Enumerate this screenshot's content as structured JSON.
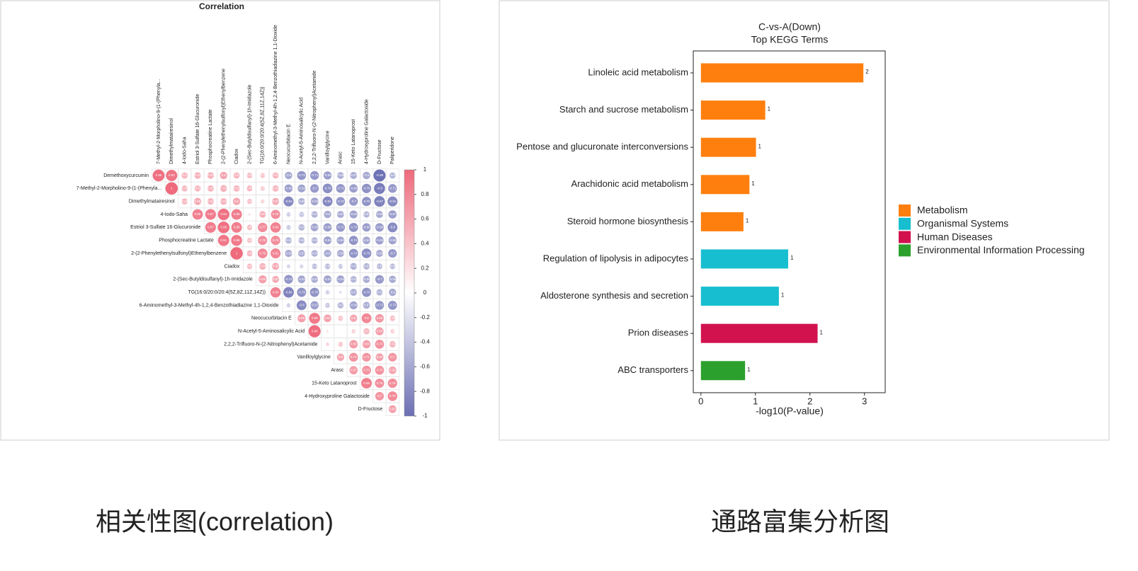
{
  "chart_data": [
    {
      "type": "correlation",
      "title": "Correlation",
      "variables": [
        "7-Methyl-2-Morpholino-9-(1-(Phenyla...",
        "Dimethylmatairesinol",
        "4-Iodo-Saha",
        "Estriol 3-Sulfate 16-Glucuronide",
        "Phosphocreatine Lactate",
        "2-(2-Phenylethenylsulfonyl)Ethenylbenzene",
        "Ciadox",
        "2-(Sec-Butyldisulfanyl)-1h-Imidazole",
        "TG(16:0/20:0/20:4(5Z,8Z,11Z,14Z))",
        "6-Aminomethyl-3-Methyl-4h-1,2,4-Benzothiadiazine 1,1-Dioxide",
        "Neocucurbitacin E",
        "N-Acetyl-5-Aminosalicylic Acid",
        "2,2,2-Trifluoro-N-(2-Nitrophenyl)Acetamide",
        "Vanilloylglycine",
        "Arasc",
        "15-Keto Latanoprost",
        "4-Hydroxyproline Galactoside",
        "D-Fructose",
        "Paliperidone"
      ],
      "row_labels": [
        "Demethoxycurcumin",
        "7-Methyl-2-Morpholino-9-(1-(Phenyla...",
        "Dimethylmatairesinol",
        "4-Iodo-Saha",
        "Estriol 3-Sulfate 16-Glucuronide",
        "Phosphocreatine Lactate",
        "2-(2-Phenylethenylsulfonyl)Ethenylbenzene",
        "Ciadox",
        "2-(Sec-Butyldisulfanyl)-1h-Imidazole",
        "TG(16:0/20:0/20:4(5Z,8Z,11Z,14Z))",
        "6-Aminomethyl-3-Methyl-4h-1,2,4-Benzothiadiazine 1,1-Dioxide",
        "Neocucurbitacin E",
        "N-Acetyl-5-Aminosalicylic Acid",
        "2,2,2-Trifluoro-N-(2-Nitrophenyl)Acetamide",
        "Vanilloylglycine",
        "Arasc",
        "15-Keto Latanoprost",
        "4-Hydroxyproline Galactoside",
        "D-Fructose"
      ],
      "matrix": [
        [
          0.96,
          0.92,
          0.5,
          0.53,
          0.53,
          0.6,
          0.5,
          0.45,
          0.4,
          0.5,
          -0.6,
          -0.72,
          -0.71,
          -0.66,
          -0.55,
          -0.57,
          -0.6,
          -0.98,
          -0.5
        ],
        [
          1,
          0.49,
          0.5,
          0.52,
          0.55,
          0.52,
          0.48,
          0.37,
          0.52,
          -0.66,
          -0.64,
          -0.7,
          -0.78,
          -0.72,
          -0.68,
          -0.76,
          -0.9,
          -0.71
        ],
        [
          0.49,
          0.58,
          0.52,
          0.53,
          0.6,
          0.42,
          0.32,
          0.57,
          -0.81,
          -0.55,
          -0.63,
          -0.81,
          -0.72,
          -0.7,
          -0.75,
          -0.87,
          -0.81
        ],
        [
          0.85,
          0.87,
          0.94,
          0.86,
          0.22,
          0.54,
          0.75,
          -0.36,
          -0.42,
          -0.53,
          -0.6,
          -0.57,
          -0.64,
          -0.51,
          -0.58,
          -0.67
        ],
        [
          0.87,
          0.95,
          0.86,
          0.45,
          0.77,
          0.84,
          -0.39,
          -0.52,
          -0.63,
          -0.68,
          -0.71,
          -0.74,
          -0.68,
          -0.69,
          -0.8
        ],
        [
          0.91,
          0.89,
          0.42,
          0.75,
          0.76,
          -0.52,
          -0.51,
          -0.52,
          -0.65,
          -0.62,
          -0.74,
          -0.62,
          -0.66,
          -0.65
        ],
        [
          1,
          0.49,
          0.79,
          0.81,
          -0.59,
          -0.57,
          -0.54,
          -0.6,
          -0.59,
          -0.74,
          -0.78,
          -0.58,
          -0.7
        ],
        [
          0.45,
          0.54,
          0.58,
          -0.32,
          -0.32,
          -0.45,
          -0.46,
          -0.39,
          -0.55,
          -0.52,
          -0.47,
          -0.46
        ],
        [
          0.65,
          0.57,
          -0.72,
          -0.62,
          -0.57,
          -0.64,
          -0.63,
          -0.53,
          -0.58,
          -0.7,
          -0.59
        ],
        [
          0.84,
          -0.86,
          -0.75,
          -0.75,
          -0.35,
          -0.24,
          -0.57,
          -0.75,
          -0.52,
          -0.6
        ],
        [
          -0.35,
          -0.8,
          -0.67,
          -0.4,
          -0.5,
          -0.64,
          -0.57,
          -0.72,
          -0.73
        ],
        [
          0.65,
          0.89,
          0.62,
          0.42,
          0.6,
          0.8,
          0.69,
          0.45
        ],
        [
          0.98,
          0.2,
          0.1,
          0.34,
          0.5,
          0.65,
          0.35
        ],
        [
          0.3,
          0.4,
          0.68,
          0.66,
          0.73,
          0.52
        ],
        [
          0.6,
          0.72,
          0.71,
          0.63,
          0.7
        ],
        [
          0.67,
          0.73,
          0.73,
          0.62
        ],
        [
          0.86,
          0.75,
          0.76
        ],
        [
          0.7,
          0.78
        ],
        [
          0.63
        ]
      ],
      "positive_color": "#ee6a7c",
      "negative_color": "#6b6fb3",
      "colorbar_lim": [
        -1,
        1
      ],
      "colorbar_ticks": [
        1,
        0.8,
        0.6,
        0.4,
        0.2,
        0,
        -0.2,
        -0.4,
        -0.6,
        -0.8,
        -1
      ]
    },
    {
      "type": "barh",
      "title": "C-vs-A(Down)",
      "subtitle": "Top KEGG Terms",
      "categories": [
        "Linoleic acid metabolism",
        "Starch and sucrose metabolism",
        "Pentose and glucuronate interconversions",
        "Arachidonic acid metabolism",
        "Steroid hormone biosynthesis",
        "Regulation of lipolysis in adipocytes",
        "Aldosterone synthesis and secretion",
        "Prion diseases",
        "ABC transporters"
      ],
      "series": [
        {
          "name": "Metabolism",
          "color": "#ff7f0e",
          "values": [
            2.98,
            1.18,
            1.01,
            0.89,
            0.78,
            null,
            null,
            null,
            null
          ]
        },
        {
          "name": "Organismal Systems",
          "color": "#17becf",
          "values": [
            null,
            null,
            null,
            null,
            null,
            1.6,
            1.43,
            null,
            null
          ]
        },
        {
          "name": "Human Diseases",
          "color": "#d1124f",
          "values": [
            null,
            null,
            null,
            null,
            null,
            null,
            null,
            2.14,
            null
          ]
        },
        {
          "name": "Environmental Information Processing",
          "color": "#2ca02c",
          "values": [
            null,
            null,
            null,
            null,
            null,
            null,
            null,
            null,
            0.81
          ]
        }
      ],
      "counts": [
        2,
        1,
        1,
        1,
        1,
        1,
        1,
        1,
        1
      ],
      "x_label": "-log10(P-value)",
      "xlim": [
        -0.14,
        3.38
      ],
      "xticks": [
        0,
        1,
        2,
        3
      ],
      "legend": "right"
    }
  ],
  "captions": [
    "相关性图(correlation)",
    "通路富集分析图"
  ]
}
